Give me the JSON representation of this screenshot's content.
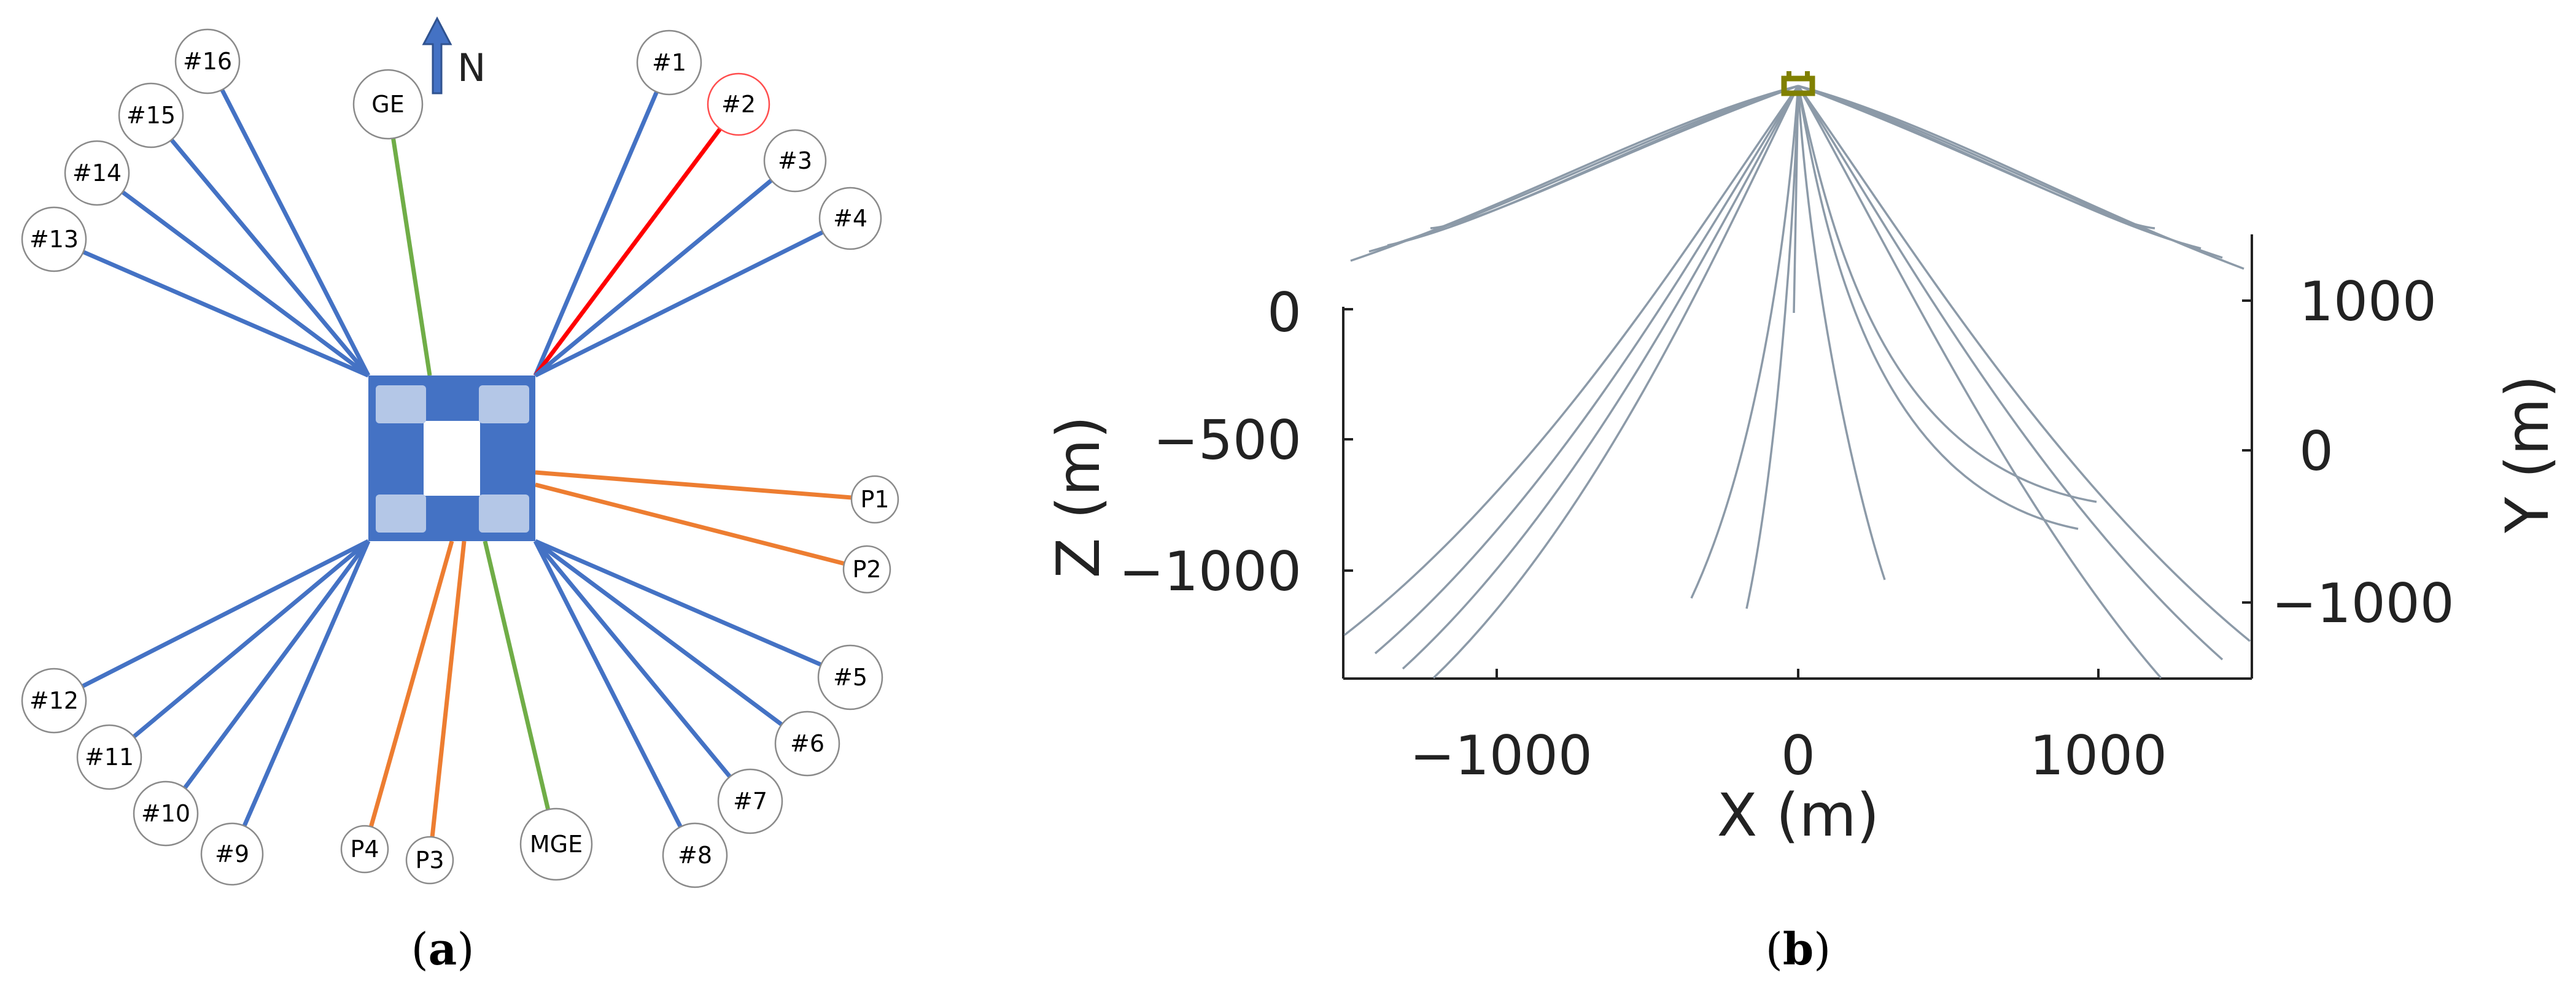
{
  "panel_a": {
    "label_open": "(",
    "label_letter": "a",
    "label_close": ")",
    "north_label": "N",
    "colors": {
      "mooring_line": "#4472c4",
      "highlighted_line": "#ff0000",
      "umbilical": "#70ad47",
      "riser": "#ed7d31",
      "platform": "#4472c4",
      "platform_column": "#b4c7e7",
      "highlighted_node_border": "#ff4d4d"
    },
    "nodes": [
      {
        "id": "m1",
        "label": "#1",
        "kind": "mooring_line"
      },
      {
        "id": "m2",
        "label": "#2",
        "kind": "highlighted_line"
      },
      {
        "id": "m3",
        "label": "#3",
        "kind": "mooring_line"
      },
      {
        "id": "m4",
        "label": "#4",
        "kind": "mooring_line"
      },
      {
        "id": "m5",
        "label": "#5",
        "kind": "mooring_line"
      },
      {
        "id": "m6",
        "label": "#6",
        "kind": "mooring_line"
      },
      {
        "id": "m7",
        "label": "#7",
        "kind": "mooring_line"
      },
      {
        "id": "m8",
        "label": "#8",
        "kind": "mooring_line"
      },
      {
        "id": "m9",
        "label": "#9",
        "kind": "mooring_line"
      },
      {
        "id": "m10",
        "label": "#10",
        "kind": "mooring_line"
      },
      {
        "id": "m11",
        "label": "#11",
        "kind": "mooring_line"
      },
      {
        "id": "m12",
        "label": "#12",
        "kind": "mooring_line"
      },
      {
        "id": "m13",
        "label": "#13",
        "kind": "mooring_line"
      },
      {
        "id": "m14",
        "label": "#14",
        "kind": "mooring_line"
      },
      {
        "id": "m15",
        "label": "#15",
        "kind": "mooring_line"
      },
      {
        "id": "m16",
        "label": "#16",
        "kind": "mooring_line"
      },
      {
        "id": "ge",
        "label": "GE",
        "kind": "umbilical"
      },
      {
        "id": "mge",
        "label": "MGE",
        "kind": "umbilical"
      },
      {
        "id": "p1",
        "label": "P1",
        "kind": "riser"
      },
      {
        "id": "p2",
        "label": "P2",
        "kind": "riser"
      },
      {
        "id": "p3",
        "label": "P3",
        "kind": "riser"
      },
      {
        "id": "p4",
        "label": "P4",
        "kind": "riser"
      }
    ]
  },
  "panel_b": {
    "label_open": "(",
    "label_letter": "b",
    "label_close": ")",
    "x_axis_label": "X (m)",
    "z_axis_label": "Z (m)",
    "y_axis_label": "Y (m)",
    "x_ticks": [
      "−1000",
      "0",
      "1000"
    ],
    "z_ticks": [
      "0",
      "−500",
      "−1000"
    ],
    "y_ticks": [
      "1000",
      "0",
      "−1000"
    ],
    "line_color": "#8c9aa8",
    "fairlead_color": "#808000"
  }
}
